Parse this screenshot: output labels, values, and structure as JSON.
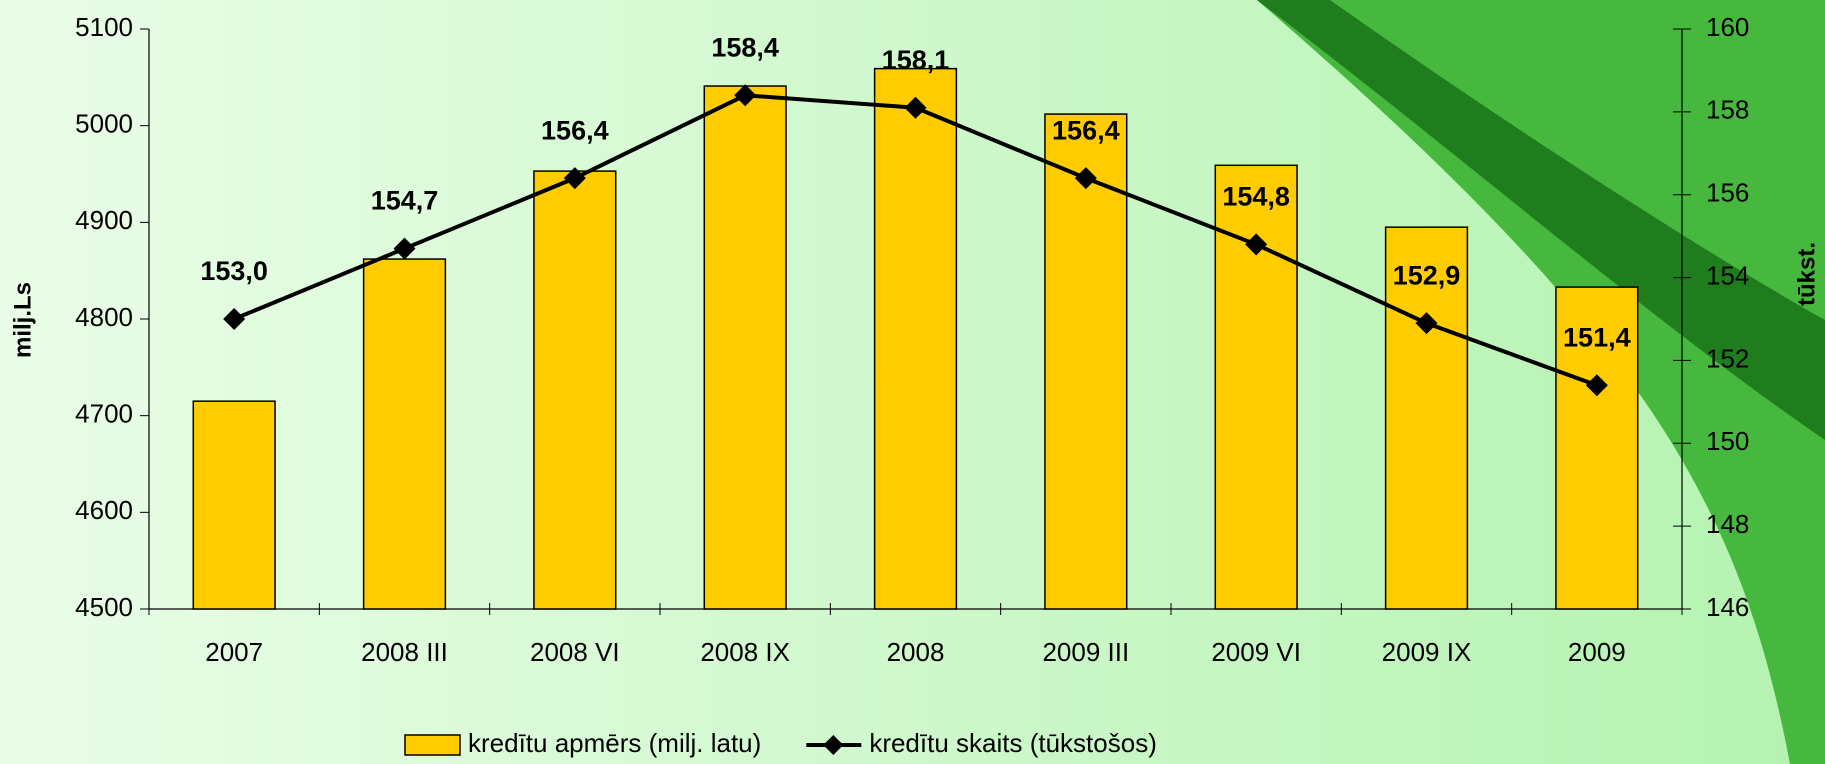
{
  "chart_data": {
    "type": "bar",
    "categories": [
      "2007",
      "2008 III",
      "2008 VI",
      "2008 IX",
      "2008",
      "2009 III",
      "2009 VI",
      "2009 IX",
      "2009"
    ],
    "ylabel": "milj.Ls",
    "y2label": "tūkst.",
    "ylim": [
      4500,
      5100
    ],
    "yticks": [
      4500,
      4600,
      4700,
      4800,
      4900,
      5000,
      5100
    ],
    "y2lim": [
      146,
      160
    ],
    "y2ticks": [
      146,
      148,
      150,
      152,
      154,
      156,
      158,
      160
    ],
    "series": [
      {
        "name": "kredītu apmērs (milj. latu)",
        "type": "bar",
        "color": "#ffcc00",
        "values": [
          4715,
          4862,
          4953,
          5041,
          5059,
          5012,
          4959,
          4895,
          4833
        ]
      },
      {
        "name": "kredītu skaits (tūkstošos)",
        "type": "line",
        "axis": "y2",
        "color": "#000000",
        "values": [
          153.0,
          154.7,
          156.4,
          158.4,
          158.1,
          156.4,
          154.8,
          152.9,
          151.4
        ],
        "value_labels": [
          "153,0",
          "154,7",
          "156,4",
          "158,4",
          "158,1",
          "156,4",
          "154,8",
          "152,9",
          "151,4"
        ]
      }
    ],
    "legend": "bottom"
  }
}
